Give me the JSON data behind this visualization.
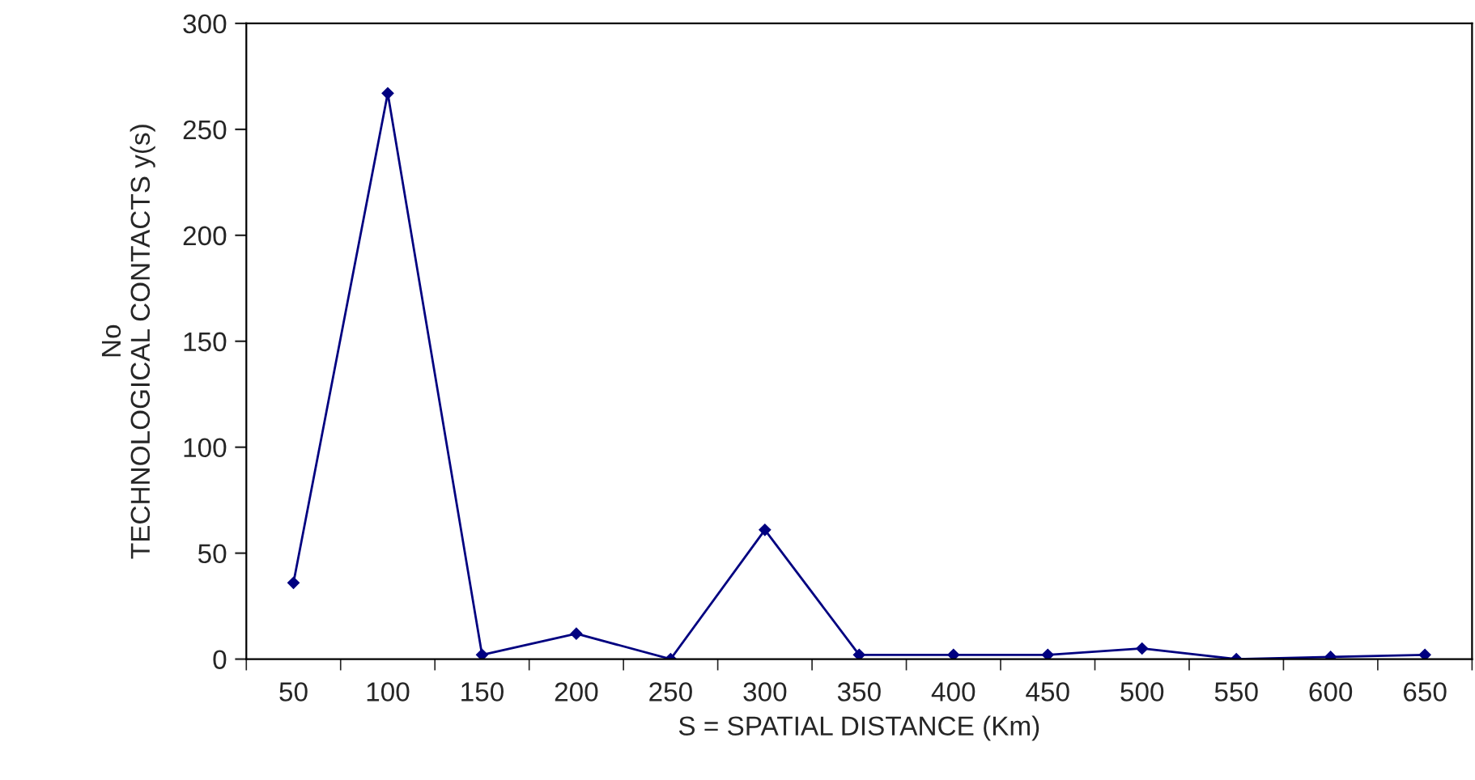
{
  "chart_data": {
    "type": "line",
    "xlabel": "S = SPATIAL DISTANCE (Km)",
    "ylabel": "No\nTECHNOLOGICAL CONTACTS y(s)",
    "categories": [
      "50",
      "100",
      "150",
      "200",
      "250",
      "300",
      "350",
      "400",
      "450",
      "500",
      "550",
      "600",
      "650"
    ],
    "series": [
      {
        "color": "#000080",
        "values": [
          36,
          267,
          2,
          12,
          0,
          61,
          2,
          2,
          2,
          5,
          0,
          1,
          2
        ]
      }
    ],
    "ylim": [
      0,
      300
    ],
    "yticks": [
      0,
      50,
      100,
      150,
      200,
      250,
      300
    ],
    "grid": false,
    "legend": false,
    "marker": "diamond",
    "line_style": "solid"
  }
}
